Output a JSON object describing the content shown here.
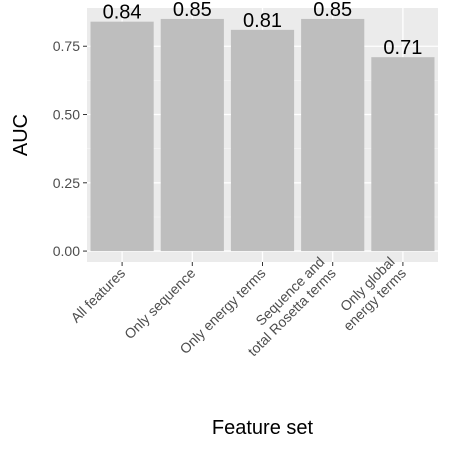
{
  "chart_data": {
    "type": "bar",
    "categories": [
      [
        "All features"
      ],
      [
        "Only sequence"
      ],
      [
        "Only energy terms"
      ],
      [
        "Sequence and",
        "total Rosetta terms"
      ],
      [
        "Only global",
        "energy terms"
      ]
    ],
    "values": [
      0.84,
      0.85,
      0.81,
      0.85,
      0.71
    ],
    "value_labels": [
      "0.84",
      "0.85",
      "0.81",
      "0.85",
      "0.71"
    ],
    "xlabel": "Feature set",
    "ylabel": "AUC",
    "ylim": [
      -0.04,
      0.89
    ],
    "yticks": [
      0.0,
      0.25,
      0.5,
      0.75
    ],
    "ytick_labels": [
      "0.00",
      "0.25",
      "0.50",
      "0.75"
    ],
    "grid": true,
    "legend": "none",
    "colors": {
      "bar": "#bebebe",
      "panel": "#ebebeb",
      "grid_major": "#ffffff",
      "grid_minor": "#f5f5f5",
      "tick": "#333333"
    }
  }
}
